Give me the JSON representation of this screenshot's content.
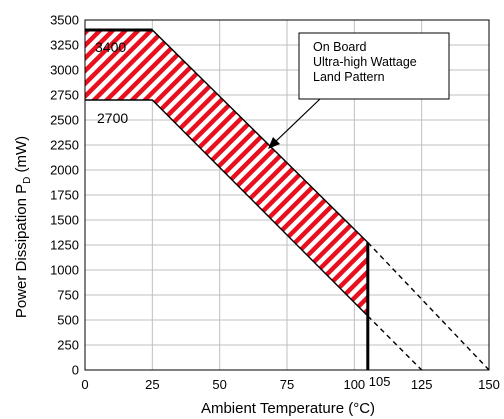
{
  "chart_data": {
    "type": "area",
    "xlabel": "Ambient Temperature (°C)",
    "ylabel": "Power Dissipation P",
    "ylabel_sub": "D",
    "ylabel_unit": " (mW)",
    "xlim": [
      0,
      150
    ],
    "ylim": [
      0,
      3500
    ],
    "x_ticks": [
      0,
      25,
      50,
      75,
      100,
      125,
      150
    ],
    "y_ticks": [
      0,
      250,
      500,
      750,
      1000,
      1250,
      1500,
      1750,
      2000,
      2250,
      2500,
      2750,
      3000,
      3250,
      3500
    ],
    "grid": true,
    "series": [
      {
        "name": "",
        "style": "solid",
        "x": [
          0,
          25,
          105
        ],
        "y": [
          3400,
          3400,
          1275
        ]
      },
      {
        "name": "",
        "style": "solid",
        "x": [
          0,
          25,
          105
        ],
        "y": [
          2700,
          2700,
          540
        ]
      },
      {
        "name": "",
        "style": "dashed",
        "x": [
          105,
          150
        ],
        "y": [
          1275,
          0
        ]
      },
      {
        "name": "",
        "style": "dashed",
        "x": [
          105,
          125
        ],
        "y": [
          540,
          0
        ]
      }
    ],
    "annotations": {
      "upper_label": "3400",
      "lower_label": "2700",
      "x_marker_label": "105",
      "x_marker_value": 105,
      "callout_lines": [
        "On Board",
        "Ultra-high Wattage",
        "Land Pattern"
      ]
    },
    "colors": {
      "hatch": "#e8101e",
      "line": "#000000",
      "grid": "#bfbfbf"
    }
  }
}
